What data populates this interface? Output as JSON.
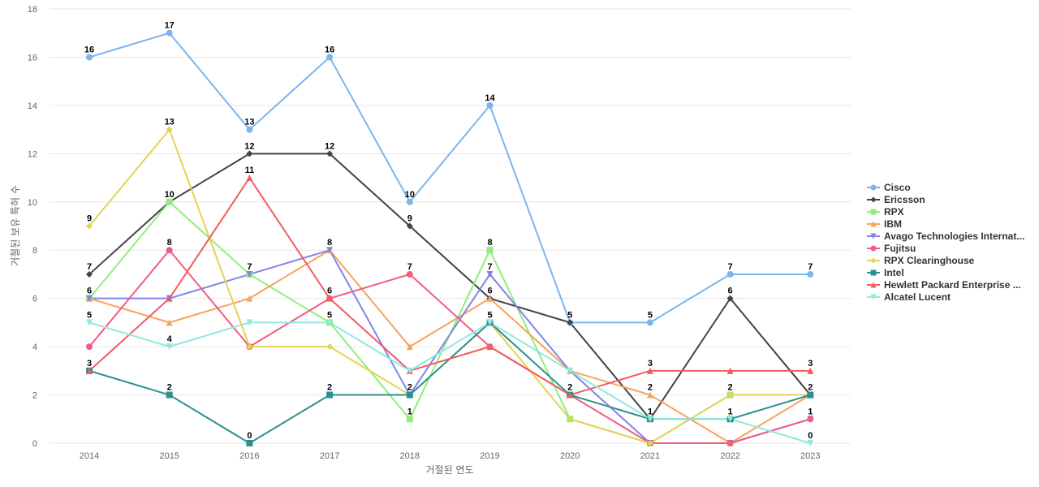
{
  "chart_data": {
    "type": "line",
    "x": [
      "2014",
      "2015",
      "2016",
      "2017",
      "2018",
      "2019",
      "2020",
      "2021",
      "2022",
      "2023"
    ],
    "xlabel": "거절된 연도",
    "ylabel": "거절된 보유 특허 수",
    "ylim": [
      0,
      18
    ],
    "yticks": [
      0,
      2,
      4,
      6,
      8,
      10,
      12,
      14,
      16,
      18
    ],
    "grid": true,
    "legend_position": "right",
    "data_labels": true,
    "series": [
      {
        "name": "Cisco",
        "color": "#7cb5ec",
        "marker": "circle",
        "values": [
          16,
          17,
          13,
          16,
          10,
          14,
          5,
          5,
          7,
          7
        ]
      },
      {
        "name": "Ericsson",
        "color": "#434348",
        "marker": "diamond",
        "values": [
          7,
          10,
          12,
          12,
          9,
          6,
          5,
          1,
          6,
          2
        ]
      },
      {
        "name": "RPX",
        "color": "#90ed7d",
        "marker": "square",
        "values": [
          6,
          10,
          7,
          5,
          1,
          8,
          1,
          0,
          2,
          2
        ]
      },
      {
        "name": "IBM",
        "color": "#f7a35c",
        "marker": "triangle",
        "values": [
          6,
          5,
          6,
          8,
          4,
          6,
          3,
          2,
          0,
          2
        ]
      },
      {
        "name": "Avago Technologies Internat...",
        "color": "#8085e9",
        "marker": "triangle-down",
        "values": [
          6,
          6,
          7,
          8,
          2,
          7,
          3,
          0,
          0,
          1
        ]
      },
      {
        "name": "Fujitsu",
        "color": "#f15c80",
        "marker": "circle",
        "values": [
          4,
          8,
          4,
          6,
          7,
          4,
          2,
          0,
          0,
          1
        ]
      },
      {
        "name": "RPX Clearinghouse",
        "color": "#e4d354",
        "marker": "diamond",
        "values": [
          9,
          13,
          4,
          4,
          2,
          5,
          1,
          0,
          2,
          2
        ]
      },
      {
        "name": "Intel",
        "color": "#2b908f",
        "marker": "square",
        "values": [
          3,
          2,
          0,
          2,
          2,
          5,
          2,
          1,
          1,
          2
        ]
      },
      {
        "name": "Hewlett Packard Enterprise ...",
        "color": "#f45b5b",
        "marker": "triangle",
        "values": [
          3,
          6,
          11,
          6,
          3,
          4,
          2,
          3,
          3,
          3
        ]
      },
      {
        "name": "Alcatel Lucent",
        "color": "#91e8e1",
        "marker": "triangle-down",
        "values": [
          5,
          4,
          5,
          5,
          3,
          5,
          3,
          1,
          1,
          0
        ]
      }
    ],
    "point_labels": [
      {
        "series": "Cisco",
        "points": [
          0,
          1,
          2,
          3,
          4,
          5,
          6,
          7,
          8,
          9
        ]
      },
      {
        "series": "Ericsson",
        "points": [
          0,
          2,
          3,
          4,
          8
        ]
      },
      {
        "series": "RPX",
        "points": [
          1,
          4,
          5
        ]
      },
      {
        "series": "Fujitsu",
        "points": [
          1,
          4,
          9
        ]
      },
      {
        "series": "RPX Clearinghouse",
        "points": [
          0,
          1,
          8,
          9
        ]
      },
      {
        "series": "Intel",
        "points": [
          0,
          1,
          2,
          3,
          4,
          5,
          6,
          7,
          8
        ]
      },
      {
        "series": "Hewlett Packard Enterprise ...",
        "points": [
          2,
          7,
          9
        ]
      },
      {
        "series": "IBM",
        "points": [
          0,
          5,
          7
        ]
      },
      {
        "series": "Avago Technologies Internat...",
        "points": [
          2,
          3,
          5
        ]
      },
      {
        "series": "Alcatel Lucent",
        "points": [
          0,
          1,
          3,
          9
        ]
      },
      {
        "series": "Hewlett Packard Enterprise ...",
        "points": [
          3
        ]
      }
    ]
  }
}
